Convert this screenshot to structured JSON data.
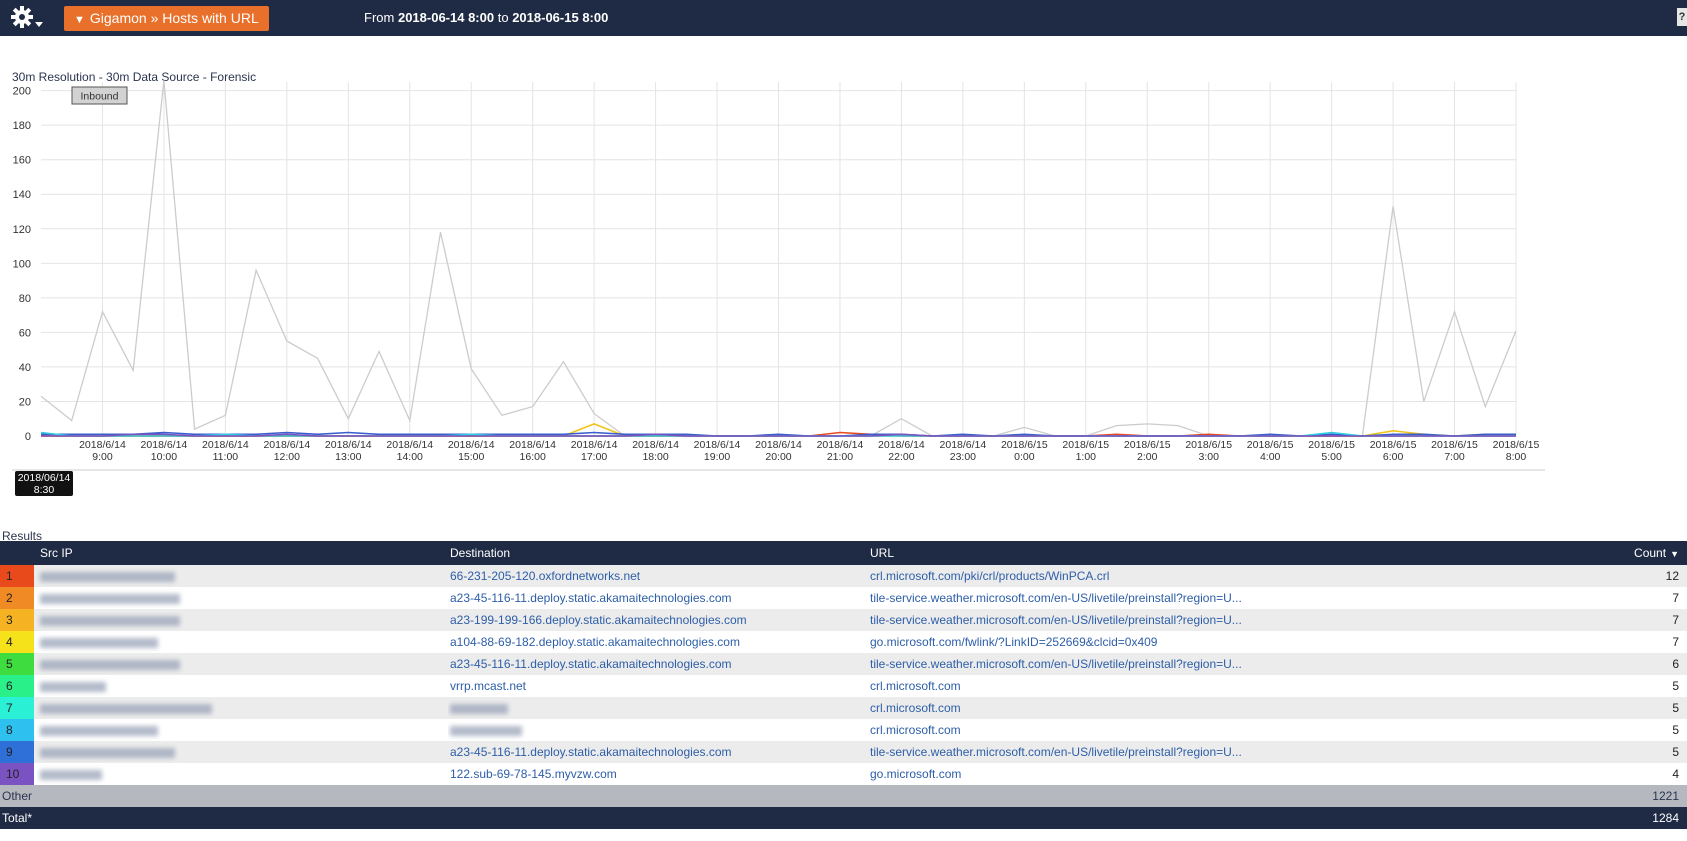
{
  "header": {
    "title_button": "Gigamon » Hosts with URL",
    "range_prefix": "From",
    "range_start": "2018-06-14 8:00",
    "range_to": "to",
    "range_end": "2018-06-15 8:00",
    "corner_label": "?"
  },
  "chart_header": {
    "subtitle": "30m Resolution - 30m Data Source - Forensic",
    "direction_button": "Inbound",
    "tooltip_line1": "2018/06/14",
    "tooltip_line2": "8:30"
  },
  "chart_data": {
    "type": "line",
    "ylim": [
      0,
      205
    ],
    "yticks": [
      0,
      20,
      40,
      60,
      80,
      100,
      120,
      140,
      160,
      180,
      200
    ],
    "x": [
      "2018/6/14 8:00",
      "2018/6/14 8:30",
      "2018/6/14 9:00",
      "2018/6/14 9:30",
      "2018/6/14 10:00",
      "2018/6/14 10:30",
      "2018/6/14 11:00",
      "2018/6/14 11:30",
      "2018/6/14 12:00",
      "2018/6/14 12:30",
      "2018/6/14 13:00",
      "2018/6/14 13:30",
      "2018/6/14 14:00",
      "2018/6/14 14:30",
      "2018/6/14 15:00",
      "2018/6/14 15:30",
      "2018/6/14 16:00",
      "2018/6/14 16:30",
      "2018/6/14 17:00",
      "2018/6/14 17:30",
      "2018/6/14 18:00",
      "2018/6/14 18:30",
      "2018/6/14 19:00",
      "2018/6/14 19:30",
      "2018/6/14 20:00",
      "2018/6/14 20:30",
      "2018/6/14 21:00",
      "2018/6/14 21:30",
      "2018/6/14 22:00",
      "2018/6/14 22:30",
      "2018/6/14 23:00",
      "2018/6/14 23:30",
      "2018/6/15 0:00",
      "2018/6/15 0:30",
      "2018/6/15 1:00",
      "2018/6/15 1:30",
      "2018/6/15 2:00",
      "2018/6/15 2:30",
      "2018/6/15 3:00",
      "2018/6/15 3:30",
      "2018/6/15 4:00",
      "2018/6/15 4:30",
      "2018/6/15 5:00",
      "2018/6/15 5:30",
      "2018/6/15 6:00",
      "2018/6/15 6:30",
      "2018/6/15 7:00",
      "2018/6/15 7:30",
      "2018/6/15 8:00"
    ],
    "tick_labels": [
      [
        "2018/6/14",
        "9:00"
      ],
      [
        "2018/6/14",
        "10:00"
      ],
      [
        "2018/6/14",
        "11:00"
      ],
      [
        "2018/6/14",
        "12:00"
      ],
      [
        "2018/6/14",
        "13:00"
      ],
      [
        "2018/6/14",
        "14:00"
      ],
      [
        "2018/6/14",
        "15:00"
      ],
      [
        "2018/6/14",
        "16:00"
      ],
      [
        "2018/6/14",
        "17:00"
      ],
      [
        "2018/6/14",
        "18:00"
      ],
      [
        "2018/6/14",
        "19:00"
      ],
      [
        "2018/6/14",
        "20:00"
      ],
      [
        "2018/6/14",
        "21:00"
      ],
      [
        "2018/6/14",
        "22:00"
      ],
      [
        "2018/6/14",
        "23:00"
      ],
      [
        "2018/6/15",
        "0:00"
      ],
      [
        "2018/6/15",
        "1:00"
      ],
      [
        "2018/6/15",
        "2:00"
      ],
      [
        "2018/6/15",
        "3:00"
      ],
      [
        "2018/6/15",
        "4:00"
      ],
      [
        "2018/6/15",
        "5:00"
      ],
      [
        "2018/6/15",
        "6:00"
      ],
      [
        "2018/6/15",
        "7:00"
      ],
      [
        "2018/6/15",
        "8:00"
      ]
    ],
    "series": [
      {
        "color": "#cccccc",
        "values": [
          23,
          9,
          72,
          38,
          206,
          4,
          12,
          96,
          55,
          45,
          10,
          49,
          9,
          118,
          39,
          12,
          17,
          43,
          13,
          0,
          0,
          0,
          0,
          0,
          0,
          0,
          0,
          0,
          10,
          0,
          0,
          0,
          5,
          0,
          0,
          6,
          7,
          6,
          0,
          0,
          0,
          0,
          0,
          0,
          133,
          20,
          72,
          17,
          61
        ]
      },
      {
        "color": "#f0c419",
        "values": [
          0,
          0,
          0,
          0,
          0,
          0,
          0,
          0,
          0,
          0,
          0,
          0,
          0,
          0,
          0,
          0,
          0,
          0,
          7,
          0,
          0,
          0,
          0,
          0,
          0,
          0,
          0,
          0,
          0,
          0,
          0,
          0,
          0,
          0,
          0,
          0,
          0,
          0,
          0,
          0,
          0,
          0,
          0,
          0,
          3,
          1,
          0,
          1,
          1
        ]
      },
      {
        "color": "#e84a1c",
        "values": [
          0,
          0,
          0,
          0,
          0,
          0,
          0,
          0,
          0,
          0,
          0,
          0,
          0,
          0,
          0,
          0,
          0,
          0,
          0,
          0,
          0,
          0,
          0,
          0,
          0,
          0,
          2,
          1,
          0,
          0,
          0,
          0,
          0,
          0,
          0,
          1,
          0,
          0,
          1,
          0,
          0,
          0,
          0,
          0,
          0,
          0,
          0,
          0,
          0
        ]
      },
      {
        "color": "#3a5fcd",
        "values": [
          1,
          1,
          1,
          1,
          2,
          1,
          1,
          1,
          2,
          1,
          2,
          1,
          1,
          1,
          1,
          1,
          1,
          1,
          2,
          1,
          1,
          1,
          0,
          0,
          1,
          0,
          0,
          1,
          1,
          0,
          1,
          0,
          1,
          0,
          0,
          0,
          0,
          0,
          0,
          0,
          1,
          0,
          1,
          0,
          1,
          1,
          0,
          1,
          1
        ]
      },
      {
        "color": "#2ecfe0",
        "values": [
          2,
          0,
          0,
          0,
          0,
          0,
          1,
          0,
          0,
          0,
          0,
          0,
          0,
          0,
          1,
          0,
          0,
          0,
          0,
          0,
          0,
          0,
          0,
          0,
          0,
          0,
          0,
          0,
          0,
          0,
          0,
          0,
          0,
          0,
          0,
          0,
          0,
          0,
          0,
          0,
          0,
          0,
          2,
          0,
          0,
          0,
          0,
          0,
          0
        ]
      },
      {
        "color": "#7b52c1",
        "values": [
          0,
          0,
          0,
          1,
          1,
          0,
          0,
          0,
          1,
          0,
          0,
          0,
          0,
          0,
          0,
          0,
          0,
          0,
          0,
          0,
          1,
          0,
          0,
          0,
          0,
          0,
          0,
          0,
          1,
          0,
          0,
          0,
          0,
          0,
          0,
          0,
          0,
          0,
          0,
          0,
          0,
          0,
          0,
          0,
          0,
          0,
          0,
          0,
          0
        ]
      }
    ]
  },
  "results": {
    "label": "Results",
    "columns": {
      "rank": "",
      "src": "Src IP",
      "dst": "Destination",
      "url": "URL",
      "count": "Count"
    },
    "sort_arrow": "▼",
    "rows": [
      {
        "rank": "1",
        "color": "#e84a1c",
        "blur_w": 135,
        "dst": "66-231-205-120.oxfordnetworks.net",
        "url": "crl.microsoft.com/pki/crl/products/WinPCA.crl",
        "count": "12"
      },
      {
        "rank": "2",
        "color": "#f08a24",
        "blur_w": 140,
        "dst": "a23-45-116-11.deploy.static.akamaitechnologies.com",
        "url": "tile-service.weather.microsoft.com/en-US/livetile/preinstall?region=U...",
        "count": "7"
      },
      {
        "rank": "3",
        "color": "#f5b324",
        "blur_w": 140,
        "dst": "a23-199-199-166.deploy.static.akamaitechnologies.com",
        "url": "tile-service.weather.microsoft.com/en-US/livetile/preinstall?region=U...",
        "count": "7"
      },
      {
        "rank": "4",
        "color": "#f5e21a",
        "blur_w": 118,
        "dst": "a104-88-69-182.deploy.static.akamaitechnologies.com",
        "url": "go.microsoft.com/fwlink/?LinkID=252669&clcid=0x409",
        "count": "7"
      },
      {
        "rank": "5",
        "color": "#3fdc3f",
        "blur_w": 140,
        "dst": "a23-45-116-11.deploy.static.akamaitechnologies.com",
        "url": "tile-service.weather.microsoft.com/en-US/livetile/preinstall?region=U...",
        "count": "6"
      },
      {
        "rank": "6",
        "color": "#2af08a",
        "blur_w": 66,
        "dst": "vrrp.mcast.net",
        "url": "crl.microsoft.com",
        "count": "5"
      },
      {
        "rank": "7",
        "color": "#2af0d6",
        "blur_w": 172,
        "dst": "",
        "dst_blur": 58,
        "url": "crl.microsoft.com",
        "count": "5"
      },
      {
        "rank": "8",
        "color": "#2ec0ee",
        "blur_w": 118,
        "dst": "",
        "dst_blur": 72,
        "url": "crl.microsoft.com",
        "count": "5"
      },
      {
        "rank": "9",
        "color": "#2f6fd8",
        "blur_w": 135,
        "dst": "a23-45-116-11.deploy.static.akamaitechnologies.com",
        "url": "tile-service.weather.microsoft.com/en-US/livetile/preinstall?region=U...",
        "count": "5"
      },
      {
        "rank": "10",
        "color": "#7b52c1",
        "blur_w": 62,
        "dst": "122.sub-69-78-145.myvzw.com",
        "url": "go.microsoft.com",
        "count": "4"
      }
    ],
    "other_label": "Other",
    "other_count": "1221",
    "total_label": "Total*",
    "total_count": "1284"
  }
}
